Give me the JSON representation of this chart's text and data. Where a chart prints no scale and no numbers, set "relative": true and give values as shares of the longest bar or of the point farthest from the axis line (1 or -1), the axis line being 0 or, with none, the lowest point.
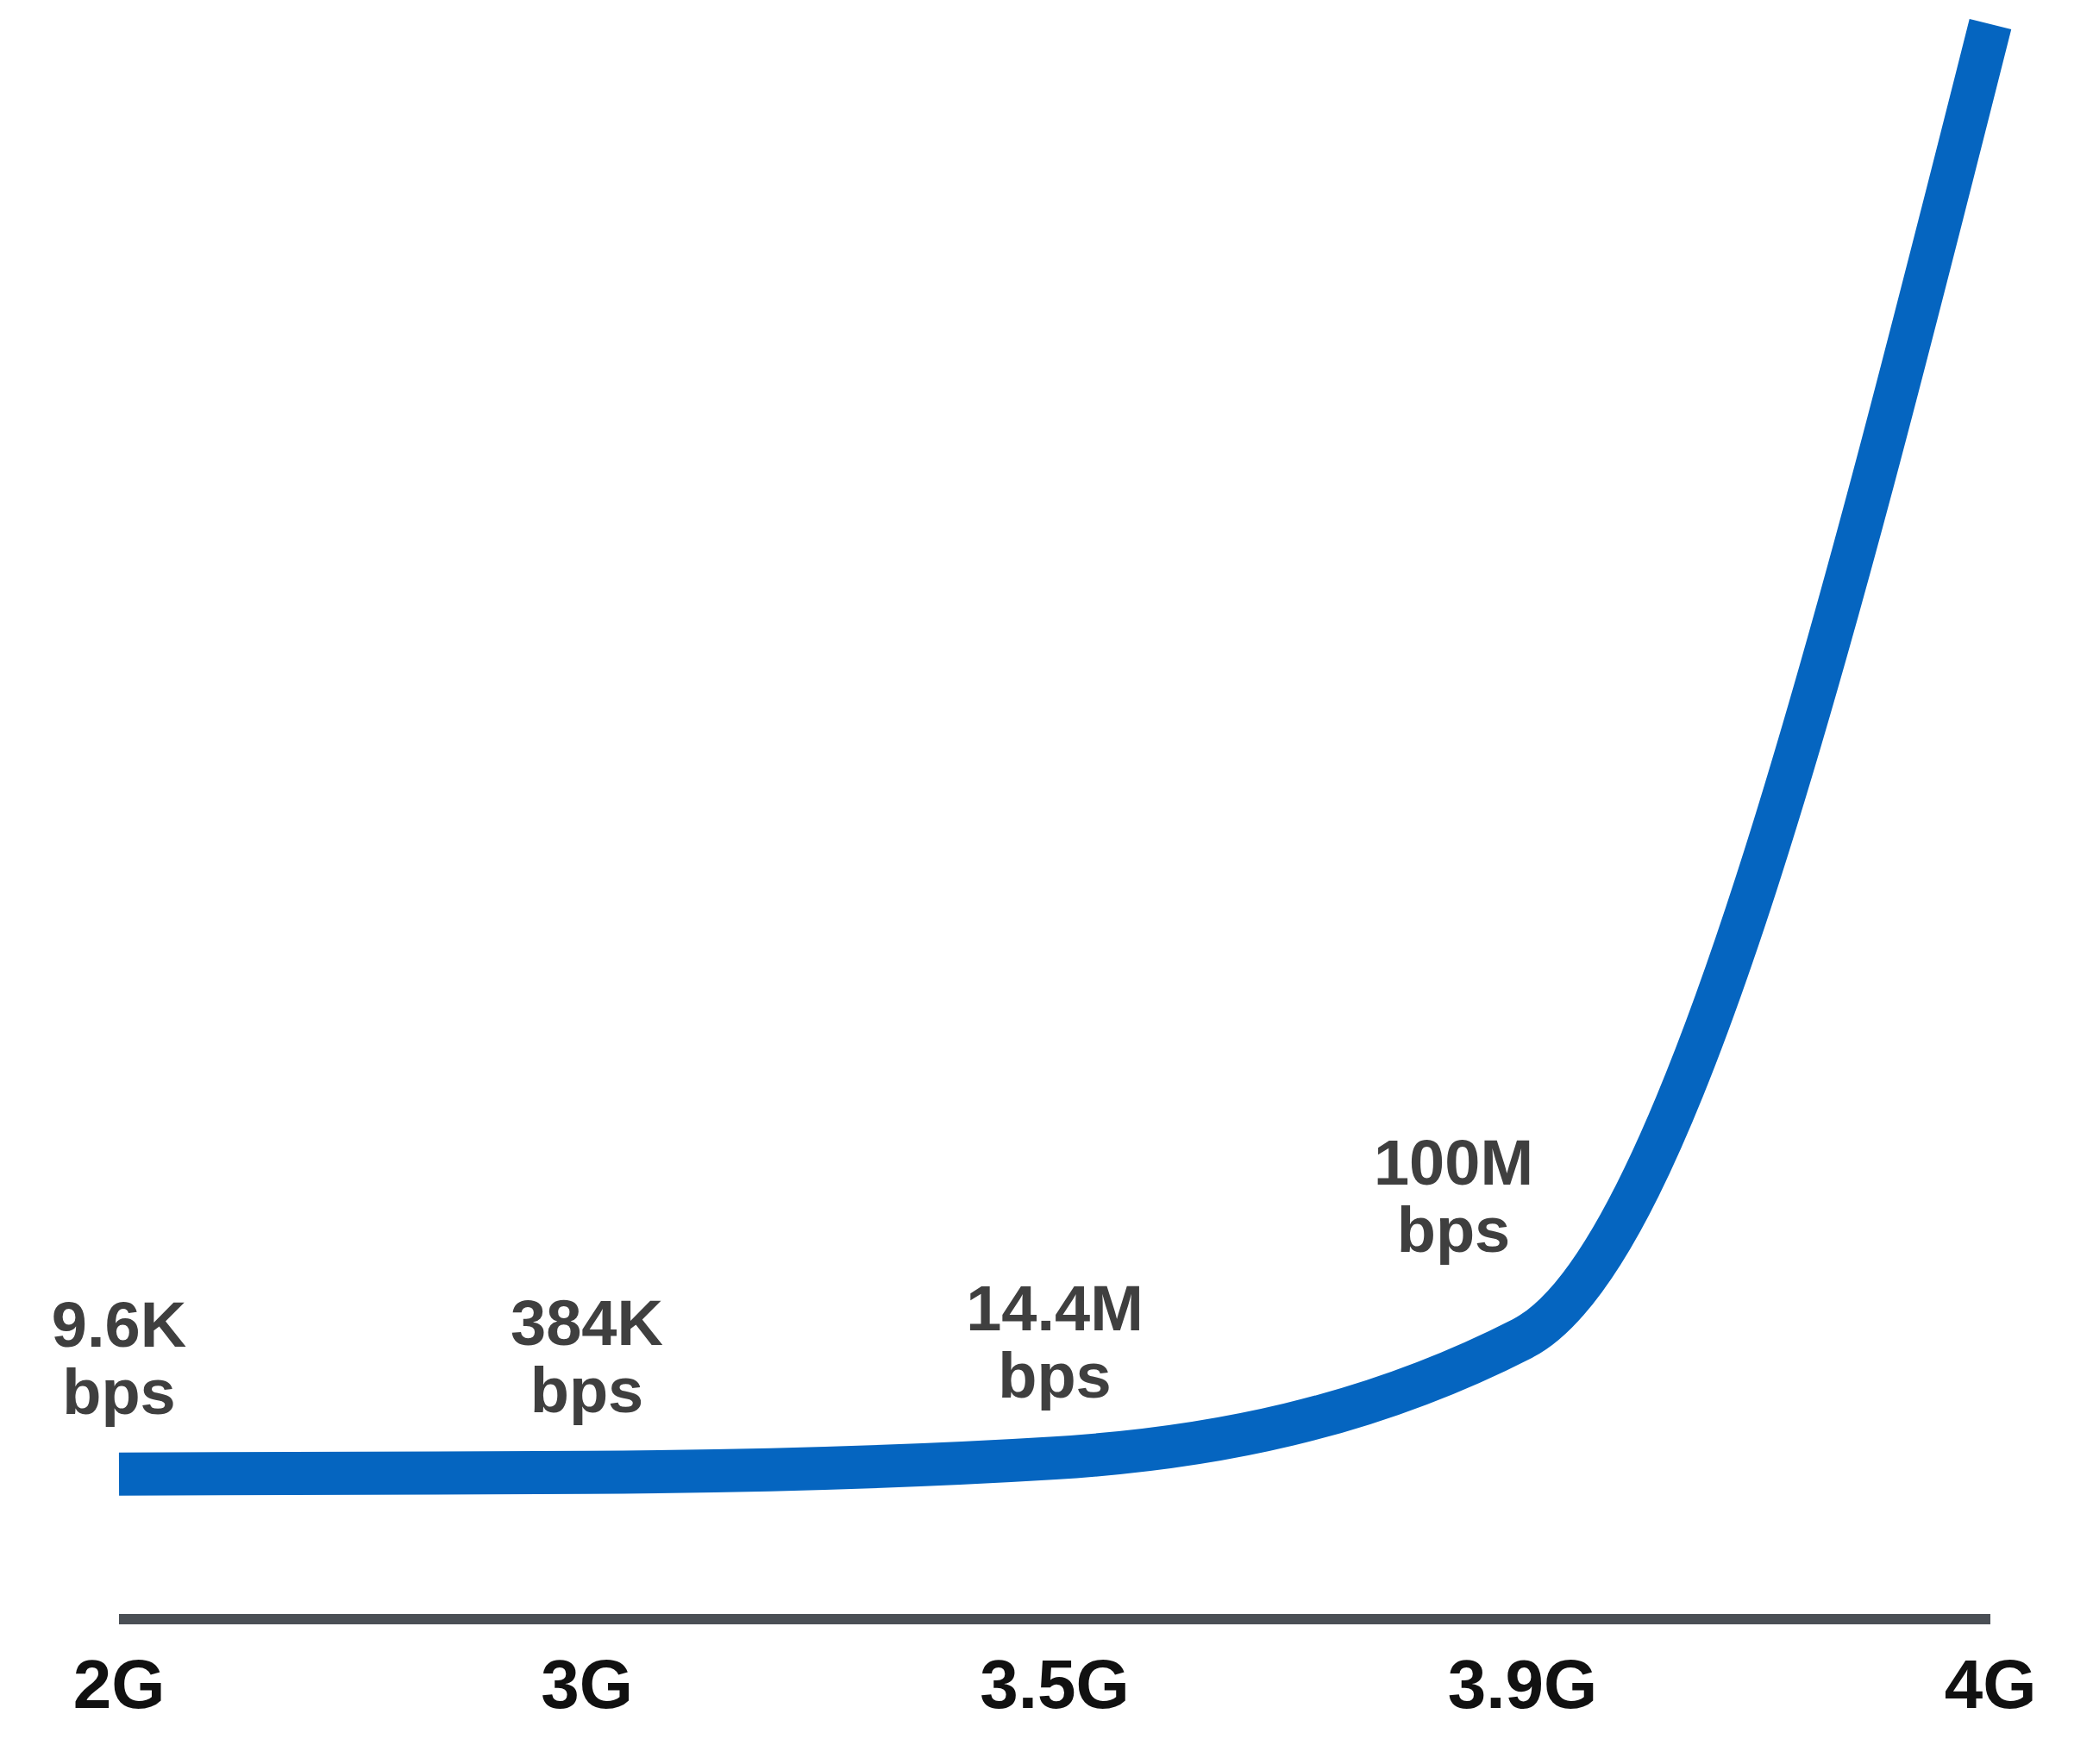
{
  "chart_data": {
    "type": "line",
    "relative": true,
    "categories": [
      "2G",
      "3G",
      "3.5G",
      "3.9G",
      "4G"
    ],
    "series": [
      {
        "color": "#0565c0",
        "values": [
          0.091,
          0.092,
          0.101,
          0.176,
          1
        ]
      }
    ],
    "annotations": [
      "9.6K bps",
      "384K bps",
      "14.4M bps",
      "100M bps"
    ],
    "marker": "none",
    "line_style": "solid",
    "grid": false,
    "legend": false
  }
}
